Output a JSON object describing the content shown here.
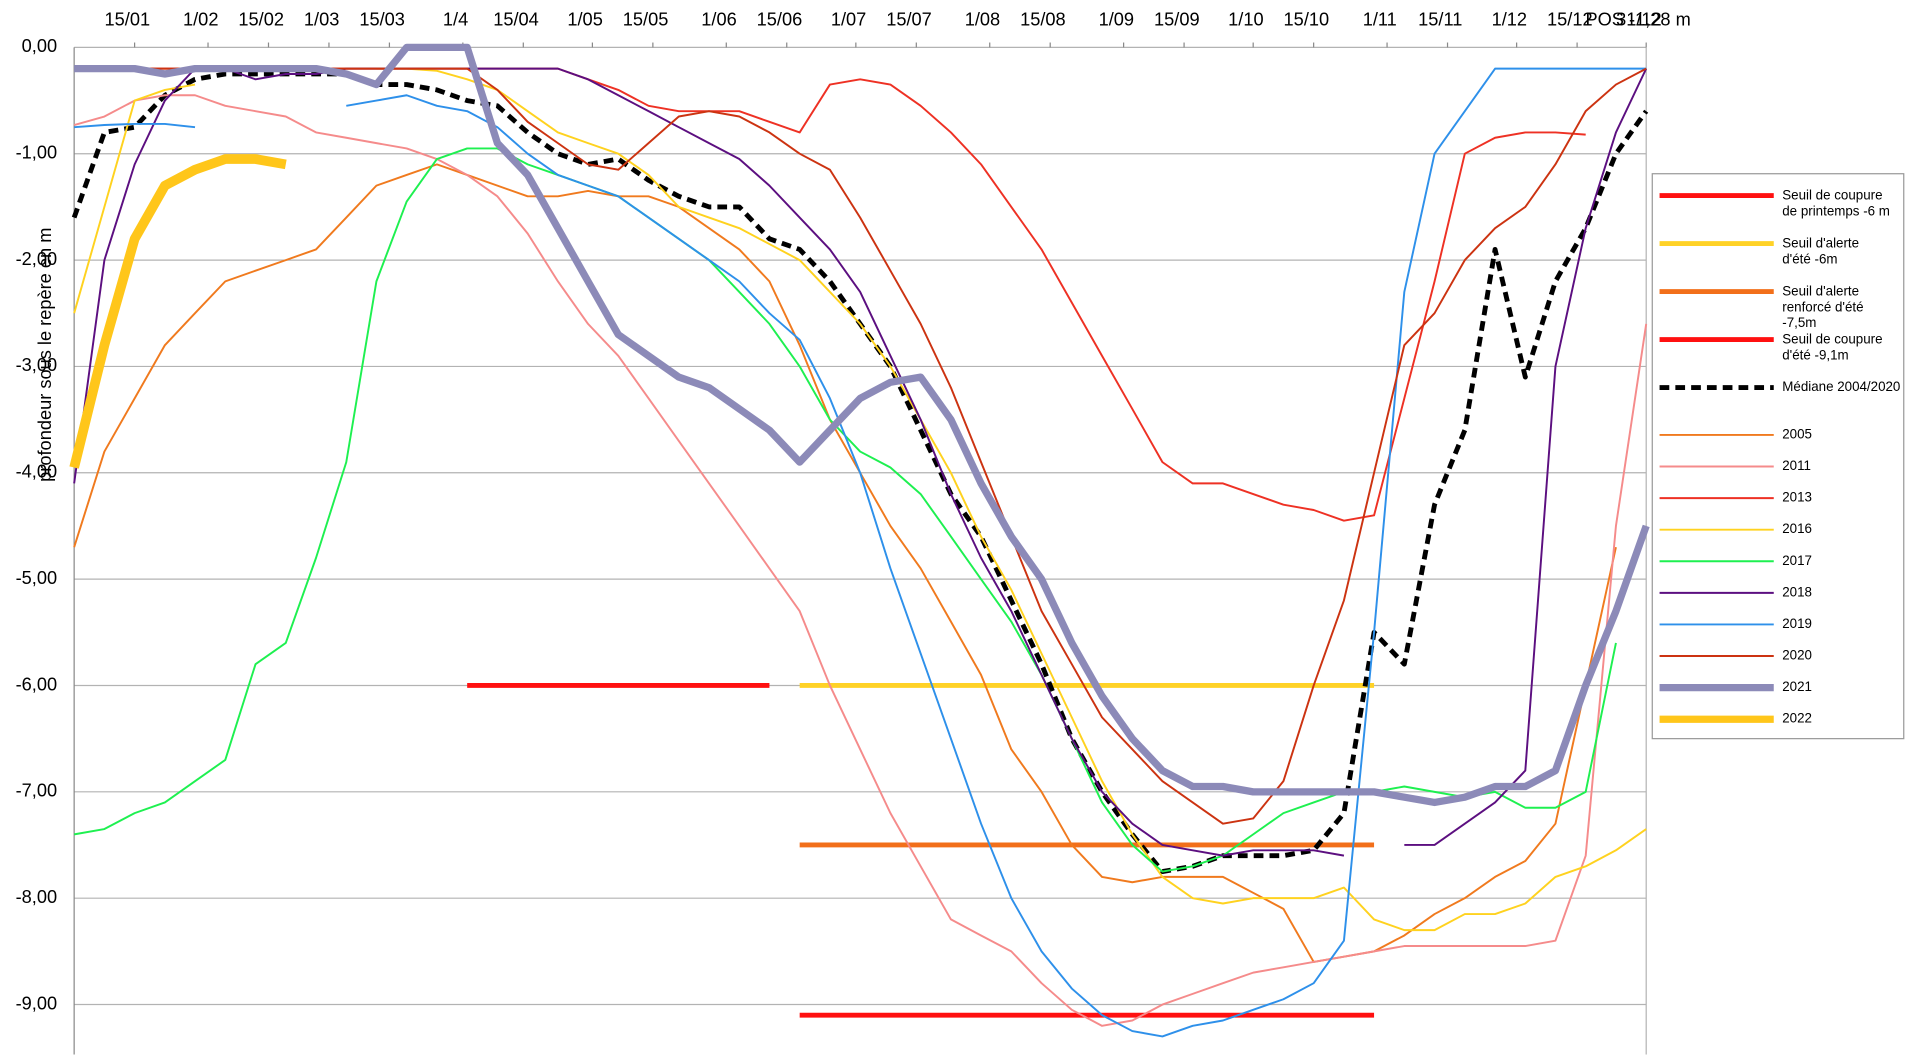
{
  "chart_data": {
    "type": "line",
    "y_axis_title": "profondeur sous le repère en m",
    "annotation": "POS -1,28 m",
    "xlim": [
      1,
      365
    ],
    "ylim": [
      -9.47,
      0
    ],
    "grid": true,
    "legend": "right",
    "xticks": [
      {
        "value": 15,
        "label": "15/01"
      },
      {
        "value": 32,
        "label": "1/02"
      },
      {
        "value": 46,
        "label": "15/02"
      },
      {
        "value": 60,
        "label": "1/03"
      },
      {
        "value": 74,
        "label": "15/03"
      },
      {
        "value": 91,
        "label": "1/4"
      },
      {
        "value": 105,
        "label": "15/04"
      },
      {
        "value": 121,
        "label": "1/05"
      },
      {
        "value": 135,
        "label": "15/05"
      },
      {
        "value": 152,
        "label": "1/06"
      },
      {
        "value": 166,
        "label": "15/06"
      },
      {
        "value": 182,
        "label": "1/07"
      },
      {
        "value": 196,
        "label": "15/07"
      },
      {
        "value": 213,
        "label": "1/08"
      },
      {
        "value": 227,
        "label": "15/08"
      },
      {
        "value": 244,
        "label": "1/09"
      },
      {
        "value": 258,
        "label": "15/09"
      },
      {
        "value": 274,
        "label": "1/10"
      },
      {
        "value": 288,
        "label": "15/10"
      },
      {
        "value": 305,
        "label": "1/11"
      },
      {
        "value": 319,
        "label": "15/11"
      },
      {
        "value": 335,
        "label": "1/12"
      },
      {
        "value": 349,
        "label": "15/12"
      },
      {
        "value": 365,
        "label": "31/12"
      }
    ],
    "yticks": [
      {
        "value": 0,
        "label": "0,00"
      },
      {
        "value": -1,
        "label": "-1,00"
      },
      {
        "value": -2,
        "label": "-2,00"
      },
      {
        "value": -3,
        "label": "-3,00"
      },
      {
        "value": -4,
        "label": "-4,00"
      },
      {
        "value": -5,
        "label": "-5,00"
      },
      {
        "value": -6,
        "label": "-6,00"
      },
      {
        "value": -7,
        "label": "-7,00"
      },
      {
        "value": -8,
        "label": "-8,00"
      },
      {
        "value": -9,
        "label": "-9,00"
      }
    ],
    "x": [
      1,
      8,
      15,
      22,
      29,
      36,
      43,
      50,
      57,
      64,
      71,
      78,
      85,
      92,
      99,
      106,
      113,
      120,
      127,
      134,
      141,
      148,
      155,
      162,
      169,
      176,
      183,
      190,
      197,
      204,
      211,
      218,
      225,
      232,
      239,
      246,
      253,
      260,
      267,
      274,
      281,
      288,
      295,
      302,
      309,
      316,
      323,
      330,
      337,
      344,
      351,
      358,
      365
    ],
    "series": [
      {
        "name": "Seuil de coupure de printemps -6 m",
        "color": "#ff1010",
        "width": 4,
        "values": [
          null,
          null,
          null,
          null,
          null,
          null,
          null,
          null,
          null,
          null,
          null,
          null,
          null,
          -6,
          -6,
          -6,
          -6,
          -6,
          -6,
          -6,
          -6,
          -6,
          -6,
          -6,
          null,
          null,
          null,
          null,
          null,
          null,
          null,
          null,
          null,
          null,
          null,
          null,
          null,
          null,
          null,
          null,
          null,
          null,
          null,
          null,
          null,
          null,
          null,
          null,
          null,
          null,
          null,
          null,
          null
        ]
      },
      {
        "name": "Seuil d'alerte d'été -6m",
        "color": "#ffd227",
        "width": 4,
        "values": [
          null,
          null,
          null,
          null,
          null,
          null,
          null,
          null,
          null,
          null,
          null,
          null,
          null,
          null,
          null,
          null,
          null,
          null,
          null,
          null,
          null,
          null,
          null,
          null,
          -6,
          -6,
          -6,
          -6,
          -6,
          -6,
          -6,
          -6,
          -6,
          -6,
          -6,
          -6,
          -6,
          -6,
          -6,
          -6,
          -6,
          -6,
          -6,
          -6,
          null,
          null,
          null,
          null,
          null,
          null,
          null,
          null,
          null
        ]
      },
      {
        "name": "Seuil d'alerte renforcé d'été -7,5m",
        "color": "#f26f1a",
        "width": 4,
        "values": [
          null,
          null,
          null,
          null,
          null,
          null,
          null,
          null,
          null,
          null,
          null,
          null,
          null,
          null,
          null,
          null,
          null,
          null,
          null,
          null,
          null,
          null,
          null,
          null,
          -7.5,
          -7.5,
          -7.5,
          -7.5,
          -7.5,
          -7.5,
          -7.5,
          -7.5,
          -7.5,
          -7.5,
          -7.5,
          -7.5,
          -7.5,
          -7.5,
          -7.5,
          -7.5,
          -7.5,
          -7.5,
          -7.5,
          -7.5,
          null,
          null,
          null,
          null,
          null,
          null,
          null,
          null,
          null
        ]
      },
      {
        "name": "Seuil de coupure d'été -9,1m",
        "color": "#ff1010",
        "width": 4,
        "values": [
          null,
          null,
          null,
          null,
          null,
          null,
          null,
          null,
          null,
          null,
          null,
          null,
          null,
          null,
          null,
          null,
          null,
          null,
          null,
          null,
          null,
          null,
          null,
          null,
          -9.1,
          -9.1,
          -9.1,
          -9.1,
          -9.1,
          -9.1,
          -9.1,
          -9.1,
          -9.1,
          -9.1,
          -9.1,
          -9.1,
          -9.1,
          -9.1,
          -9.1,
          -9.1,
          -9.1,
          -9.1,
          -9.1,
          -9.1,
          null,
          null,
          null,
          null,
          null,
          null,
          null,
          null,
          null
        ]
      },
      {
        "name": "Médiane 2004/2020",
        "color": "#000000",
        "width": 4,
        "dashed": true,
        "values": [
          -1.6,
          -0.8,
          -0.75,
          -0.45,
          -0.3,
          -0.25,
          -0.25,
          -0.25,
          -0.25,
          -0.25,
          -0.35,
          -0.35,
          -0.4,
          -0.5,
          -0.55,
          -0.8,
          -1.0,
          -1.1,
          -1.05,
          -1.25,
          -1.4,
          -1.5,
          -1.5,
          -1.8,
          -1.9,
          -2.2,
          -2.6,
          -3.0,
          -3.6,
          -4.2,
          -4.6,
          -5.2,
          -5.8,
          -6.5,
          -7.0,
          -7.4,
          -7.75,
          -7.7,
          -7.6,
          -7.6,
          -7.6,
          -7.55,
          -7.2,
          -5.5,
          -5.8,
          -4.3,
          -3.6,
          -1.9,
          -3.1,
          -2.2,
          -1.7,
          -1.0,
          -0.6
        ]
      },
      {
        "name": "2005",
        "color": "#f07a1e",
        "width": 1.6,
        "values": [
          -4.7,
          -3.8,
          -3.3,
          -2.8,
          -2.5,
          -2.2,
          -2.1,
          -2.0,
          -1.9,
          -1.6,
          -1.3,
          -1.2,
          -1.1,
          -1.2,
          -1.3,
          -1.4,
          -1.4,
          -1.35,
          -1.4,
          -1.4,
          -1.5,
          -1.7,
          -1.9,
          -2.2,
          -2.8,
          -3.5,
          -4.0,
          -4.5,
          -4.9,
          -5.4,
          -5.9,
          -6.6,
          -7.0,
          -7.5,
          -7.8,
          -7.85,
          -7.8,
          -7.8,
          -7.8,
          -7.95,
          -8.1,
          -8.6,
          -8.55,
          -8.5,
          -8.35,
          -8.15,
          -8.0,
          -7.8,
          -7.65,
          -7.3,
          -6.0,
          -4.7,
          null
        ]
      },
      {
        "name": "2011",
        "color": "#f58b8b",
        "width": 1.6,
        "values": [
          -0.73,
          -0.65,
          -0.5,
          -0.45,
          -0.45,
          -0.55,
          -0.6,
          -0.65,
          -0.8,
          -0.85,
          -0.9,
          -0.95,
          -1.05,
          -1.2,
          -1.4,
          -1.75,
          -2.2,
          -2.6,
          -2.9,
          -3.3,
          -3.7,
          -4.1,
          -4.5,
          -4.9,
          -5.3,
          -6.0,
          -6.6,
          -7.2,
          -7.7,
          -8.2,
          -8.35,
          -8.5,
          -8.8,
          -9.05,
          -9.2,
          -9.15,
          -9.0,
          -8.9,
          -8.8,
          -8.7,
          -8.65,
          -8.6,
          -8.55,
          -8.5,
          -8.45,
          -8.45,
          -8.45,
          -8.45,
          -8.45,
          -8.4,
          -7.6,
          -4.5,
          -2.6
        ]
      },
      {
        "name": "2013",
        "color": "#ee3124",
        "width": 1.6,
        "values": [
          null,
          -0.2,
          -0.2,
          -0.2,
          -0.2,
          -0.2,
          -0.2,
          -0.2,
          -0.2,
          -0.2,
          -0.2,
          -0.2,
          -0.2,
          -0.2,
          -0.2,
          -0.2,
          -0.2,
          -0.3,
          -0.4,
          -0.55,
          -0.6,
          -0.6,
          -0.6,
          -0.7,
          -0.8,
          -0.35,
          -0.3,
          -0.35,
          -0.55,
          -0.8,
          -1.1,
          -1.5,
          -1.9,
          -2.4,
          -2.9,
          -3.4,
          -3.9,
          -4.1,
          -4.1,
          -4.2,
          -4.3,
          -4.35,
          -4.45,
          -4.4,
          -3.3,
          -2.2,
          -1.0,
          -0.85,
          -0.8,
          -0.8,
          -0.82,
          null,
          null
        ]
      },
      {
        "name": "2016",
        "color": "#ffd21f",
        "width": 1.6,
        "values": [
          -2.5,
          -1.5,
          -0.5,
          -0.4,
          -0.35,
          null,
          null,
          null,
          null,
          null,
          -0.2,
          -0.2,
          -0.22,
          -0.3,
          -0.4,
          -0.6,
          -0.8,
          -0.9,
          -1.0,
          -1.2,
          -1.5,
          -1.6,
          -1.7,
          -1.85,
          -2.0,
          -2.3,
          -2.6,
          -3.0,
          -3.5,
          -4.0,
          -4.6,
          -5.1,
          -5.7,
          -6.3,
          -6.9,
          -7.4,
          -7.8,
          -8.0,
          -8.05,
          -8.0,
          -8.0,
          -8.0,
          -7.9,
          -8.2,
          -8.3,
          -8.3,
          -8.15,
          -8.15,
          -8.05,
          -7.8,
          -7.7,
          -7.55,
          -7.35
        ]
      },
      {
        "name": "2017",
        "color": "#1ef050",
        "width": 1.6,
        "values": [
          -7.4,
          -7.35,
          -7.2,
          -7.1,
          -6.9,
          -6.7,
          -5.8,
          -5.6,
          -4.8,
          -3.9,
          -2.2,
          -1.45,
          -1.05,
          -0.95,
          -0.95,
          -1.1,
          -1.2,
          -1.3,
          -1.4,
          -1.6,
          -1.8,
          -2.0,
          -2.3,
          -2.6,
          -3.0,
          -3.5,
          -3.8,
          -3.95,
          -4.2,
          -4.6,
          -5.0,
          -5.4,
          -5.9,
          -6.5,
          -7.1,
          -7.5,
          -7.75,
          -7.7,
          -7.6,
          -7.4,
          -7.2,
          -7.1,
          -7.0,
          -7.0,
          -6.95,
          -7.0,
          -7.05,
          -7.0,
          -7.15,
          -7.15,
          -7.0,
          -5.6,
          null
        ]
      },
      {
        "name": "2018",
        "color": "#5c0f80",
        "width": 1.6,
        "values": [
          -4.1,
          -2.0,
          -1.1,
          -0.5,
          -0.2,
          -0.2,
          -0.3,
          -0.25,
          -0.25,
          -0.2,
          -0.2,
          -0.2,
          -0.2,
          -0.2,
          -0.2,
          -0.2,
          -0.2,
          -0.3,
          -0.45,
          -0.6,
          -0.75,
          -0.9,
          -1.05,
          -1.3,
          -1.6,
          -1.9,
          -2.3,
          -2.9,
          -3.5,
          -4.2,
          -4.8,
          -5.3,
          -5.9,
          -6.5,
          -7.0,
          -7.3,
          -7.5,
          -7.55,
          -7.6,
          -7.55,
          -7.55,
          -7.55,
          -7.6,
          null,
          -7.5,
          -7.5,
          -7.3,
          -7.1,
          -6.8,
          -3.0,
          -1.7,
          -0.8,
          -0.2
        ]
      },
      {
        "name": "2019",
        "color": "#2e90ea",
        "width": 1.6,
        "values": [
          -0.75,
          -0.73,
          -0.72,
          -0.72,
          -0.75,
          null,
          null,
          null,
          null,
          -0.55,
          -0.5,
          -0.45,
          -0.55,
          -0.6,
          -0.75,
          -1.0,
          -1.2,
          -1.3,
          -1.4,
          -1.6,
          -1.8,
          -2.0,
          -2.2,
          -2.5,
          -2.75,
          -3.3,
          -4.0,
          -4.9,
          -5.7,
          -6.5,
          -7.3,
          -8.0,
          -8.5,
          -8.85,
          -9.1,
          -9.25,
          -9.3,
          -9.2,
          -9.15,
          -9.05,
          -8.95,
          -8.8,
          -8.4,
          -5.5,
          -2.3,
          -1.0,
          -0.6,
          -0.2,
          -0.2,
          -0.2,
          -0.2,
          -0.2,
          -0.2
        ]
      },
      {
        "name": "2020",
        "color": "#cc3311",
        "width": 1.6,
        "values": [
          null,
          -0.2,
          -0.2,
          -0.2,
          -0.2,
          -0.2,
          -0.2,
          -0.2,
          -0.2,
          -0.2,
          -0.2,
          -0.2,
          -0.2,
          -0.2,
          -0.4,
          -0.7,
          -0.9,
          -1.1,
          -1.15,
          -0.9,
          -0.65,
          -0.6,
          -0.65,
          -0.8,
          -1.0,
          -1.15,
          -1.6,
          -2.1,
          -2.6,
          -3.2,
          -3.9,
          -4.6,
          -5.3,
          -5.8,
          -6.3,
          -6.6,
          -6.9,
          -7.1,
          -7.3,
          -7.25,
          -6.9,
          -6.0,
          -5.2,
          -4.0,
          -2.8,
          -2.5,
          -2.0,
          -1.7,
          -1.5,
          -1.1,
          -0.6,
          -0.35,
          -0.2
        ]
      },
      {
        "name": "2021",
        "color": "#8c8ab8",
        "width": 6,
        "values": [
          -0.2,
          -0.2,
          -0.2,
          -0.25,
          -0.2,
          -0.2,
          -0.2,
          -0.2,
          -0.2,
          -0.25,
          -0.35,
          0,
          0,
          0,
          -0.9,
          -1.2,
          -1.7,
          -2.2,
          -2.7,
          -2.9,
          -3.1,
          -3.2,
          -3.4,
          -3.6,
          -3.9,
          -3.6,
          -3.3,
          -3.15,
          -3.1,
          -3.5,
          -4.1,
          -4.6,
          -5.0,
          -5.6,
          -6.1,
          -6.5,
          -6.8,
          -6.95,
          -6.95,
          -7.0,
          -7.0,
          -7.0,
          -7.0,
          -7.0,
          -7.05,
          -7.1,
          -7.05,
          -6.95,
          -6.95,
          -6.8,
          -6.0,
          -5.3,
          -4.5
        ]
      },
      {
        "name": "2022",
        "color": "#ffc61a",
        "width": 8,
        "values": [
          -3.95,
          -2.8,
          -1.8,
          -1.3,
          -1.15,
          -1.05,
          -1.05,
          -1.1,
          null,
          null,
          null,
          null,
          null,
          null,
          null,
          null,
          null,
          null,
          null,
          null,
          null,
          null,
          null,
          null,
          null,
          null,
          null,
          null,
          null,
          null,
          null,
          null,
          null,
          null,
          null,
          null,
          null,
          null,
          null,
          null,
          null,
          null,
          null,
          null,
          null,
          null,
          null,
          null,
          null,
          null,
          null,
          null,
          null
        ]
      }
    ]
  }
}
